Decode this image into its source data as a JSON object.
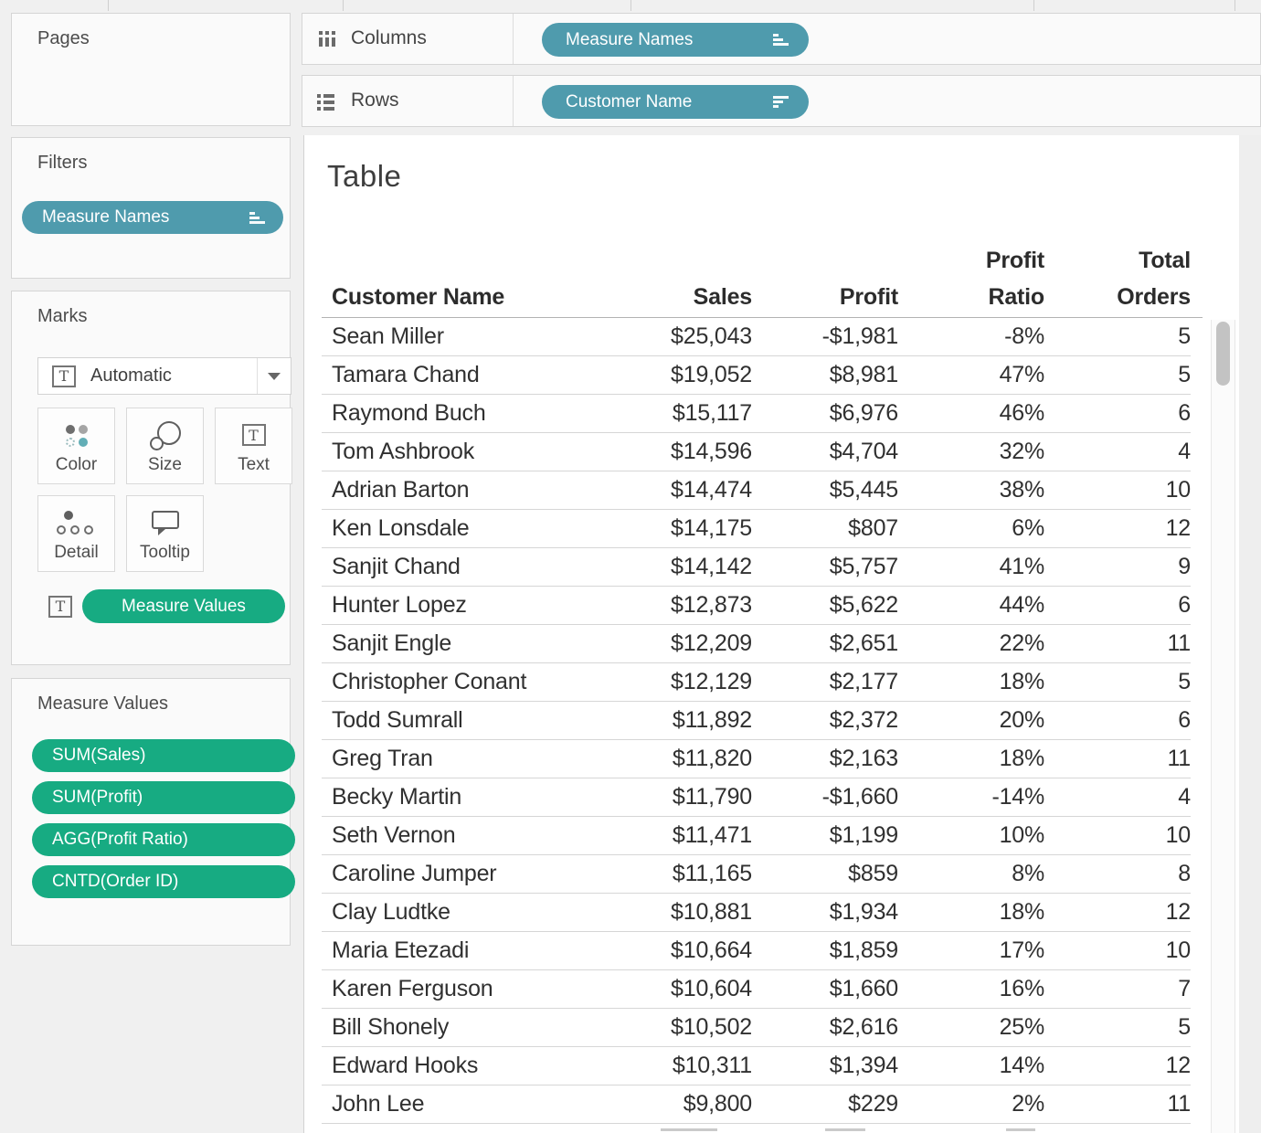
{
  "pages_panel": {
    "title": "Pages"
  },
  "filters_panel": {
    "title": "Filters",
    "pill": "Measure Names"
  },
  "shelves": {
    "columns_label": "Columns",
    "columns_pill": "Measure Names",
    "rows_label": "Rows",
    "rows_pill": "Customer Name"
  },
  "marks_panel": {
    "title": "Marks",
    "mark_type": "Automatic",
    "buttons": [
      {
        "label": "Color"
      },
      {
        "label": "Size"
      },
      {
        "label": "Text"
      },
      {
        "label": "Detail"
      },
      {
        "label": "Tooltip"
      }
    ],
    "text_shelf_pill": "Measure Values"
  },
  "measure_values_panel": {
    "title": "Measure Values",
    "pills": [
      "SUM(Sales)",
      "SUM(Profit)",
      "AGG(Profit Ratio)",
      "CNTD(Order ID)"
    ]
  },
  "sheet": {
    "title": "Table"
  },
  "colors": {
    "dimension_pill": "#4f9bad",
    "measure_pill": "#17ab82"
  },
  "chart_data": {
    "type": "table",
    "title": "Table",
    "columns": [
      "Customer Name",
      "Sales",
      "Profit",
      "Profit Ratio",
      "Total Orders"
    ],
    "header_lines": [
      [
        "Customer Name"
      ],
      [
        "Sales"
      ],
      [
        "Profit"
      ],
      [
        "Profit",
        "Ratio"
      ],
      [
        "Total",
        "Orders"
      ]
    ],
    "rows": [
      [
        "Sean Miller",
        "$25,043",
        "-$1,981",
        "-8%",
        "5"
      ],
      [
        "Tamara Chand",
        "$19,052",
        "$8,981",
        "47%",
        "5"
      ],
      [
        "Raymond Buch",
        "$15,117",
        "$6,976",
        "46%",
        "6"
      ],
      [
        "Tom Ashbrook",
        "$14,596",
        "$4,704",
        "32%",
        "4"
      ],
      [
        "Adrian Barton",
        "$14,474",
        "$5,445",
        "38%",
        "10"
      ],
      [
        "Ken Lonsdale",
        "$14,175",
        "$807",
        "6%",
        "12"
      ],
      [
        "Sanjit Chand",
        "$14,142",
        "$5,757",
        "41%",
        "9"
      ],
      [
        "Hunter Lopez",
        "$12,873",
        "$5,622",
        "44%",
        "6"
      ],
      [
        "Sanjit Engle",
        "$12,209",
        "$2,651",
        "22%",
        "11"
      ],
      [
        "Christopher Conant",
        "$12,129",
        "$2,177",
        "18%",
        "5"
      ],
      [
        "Todd Sumrall",
        "$11,892",
        "$2,372",
        "20%",
        "6"
      ],
      [
        "Greg Tran",
        "$11,820",
        "$2,163",
        "18%",
        "11"
      ],
      [
        "Becky Martin",
        "$11,790",
        "-$1,660",
        "-14%",
        "4"
      ],
      [
        "Seth Vernon",
        "$11,471",
        "$1,199",
        "10%",
        "10"
      ],
      [
        "Caroline Jumper",
        "$11,165",
        "$859",
        "8%",
        "8"
      ],
      [
        "Clay Ludtke",
        "$10,881",
        "$1,934",
        "18%",
        "12"
      ],
      [
        "Maria Etezadi",
        "$10,664",
        "$1,859",
        "17%",
        "10"
      ],
      [
        "Karen Ferguson",
        "$10,604",
        "$1,660",
        "16%",
        "7"
      ],
      [
        "Bill Shonely",
        "$10,502",
        "$2,616",
        "25%",
        "5"
      ],
      [
        "Edward Hooks",
        "$10,311",
        "$1,394",
        "14%",
        "12"
      ],
      [
        "John Lee",
        "$9,800",
        "$229",
        "2%",
        "11"
      ]
    ]
  }
}
